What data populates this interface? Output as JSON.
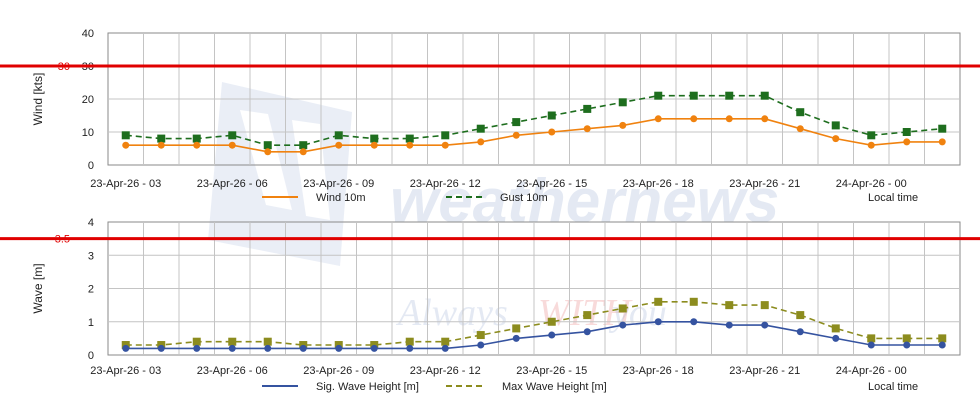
{
  "chart_data": [
    {
      "type": "line",
      "ylabel": "Wind [kts]",
      "ylim": [
        0,
        40
      ],
      "yticks": [
        "0",
        "10",
        "20",
        "30",
        "40"
      ],
      "threshold": {
        "value": 30,
        "label": "30",
        "color": "#e00000"
      },
      "x_labels": [
        "23-Apr-26 - 03",
        "23-Apr-26 - 06",
        "23-Apr-26 - 09",
        "23-Apr-26 - 12",
        "23-Apr-26 - 15",
        "23-Apr-26 - 18",
        "23-Apr-26 - 21",
        "24-Apr-26 - 00"
      ],
      "x_label_index": [
        0,
        3,
        6,
        9,
        12,
        15,
        18,
        21
      ],
      "grid": true,
      "legend_extra": "Local time",
      "series": [
        {
          "name": "Wind 10m",
          "color": "#f0820f",
          "style": "solid",
          "marker": "circle",
          "values": [
            6,
            6,
            6,
            6,
            4,
            4,
            6,
            6,
            6,
            6,
            7,
            9,
            10,
            11,
            12,
            14,
            14,
            14,
            14,
            11,
            8,
            6,
            7,
            7
          ]
        },
        {
          "name": "Gust 10m",
          "color": "#1e6e1e",
          "style": "dashed",
          "marker": "square",
          "values": [
            9,
            8,
            8,
            9,
            6,
            6,
            9,
            8,
            8,
            9,
            11,
            13,
            15,
            17,
            19,
            21,
            21,
            21,
            21,
            16,
            12,
            9,
            10,
            11
          ]
        }
      ]
    },
    {
      "type": "line",
      "ylabel": "Wave [m]",
      "ylim": [
        0,
        4
      ],
      "yticks": [
        "0",
        "1",
        "2",
        "3",
        "4"
      ],
      "threshold": {
        "value": 3.5,
        "label": "3.5",
        "color": "#e00000"
      },
      "x_labels": [
        "23-Apr-26 - 03",
        "23-Apr-26 - 06",
        "23-Apr-26 - 09",
        "23-Apr-26 - 12",
        "23-Apr-26 - 15",
        "23-Apr-26 - 18",
        "23-Apr-26 - 21",
        "24-Apr-26 - 00"
      ],
      "x_label_index": [
        0,
        3,
        6,
        9,
        12,
        15,
        18,
        21
      ],
      "grid": true,
      "legend_extra": "Local time",
      "series": [
        {
          "name": "Sig. Wave Height [m]",
          "color": "#3553a0",
          "style": "solid",
          "marker": "circle",
          "values": [
            0.2,
            0.2,
            0.2,
            0.2,
            0.2,
            0.2,
            0.2,
            0.2,
            0.2,
            0.2,
            0.3,
            0.5,
            0.6,
            0.7,
            0.9,
            1.0,
            1.0,
            0.9,
            0.9,
            0.7,
            0.5,
            0.3,
            0.3,
            0.3
          ]
        },
        {
          "name": "Max Wave Height [m]",
          "color": "#8c8c1e",
          "style": "dashed",
          "marker": "square",
          "values": [
            0.3,
            0.3,
            0.4,
            0.4,
            0.4,
            0.3,
            0.3,
            0.3,
            0.4,
            0.4,
            0.6,
            0.8,
            1.0,
            1.2,
            1.4,
            1.6,
            1.6,
            1.5,
            1.5,
            1.2,
            0.8,
            0.5,
            0.5,
            0.5
          ]
        }
      ]
    }
  ],
  "watermark": {
    "brand": "weathernews",
    "tagline_left": "Always",
    "tagline_mid": "WITH",
    "tagline_right": "you"
  }
}
